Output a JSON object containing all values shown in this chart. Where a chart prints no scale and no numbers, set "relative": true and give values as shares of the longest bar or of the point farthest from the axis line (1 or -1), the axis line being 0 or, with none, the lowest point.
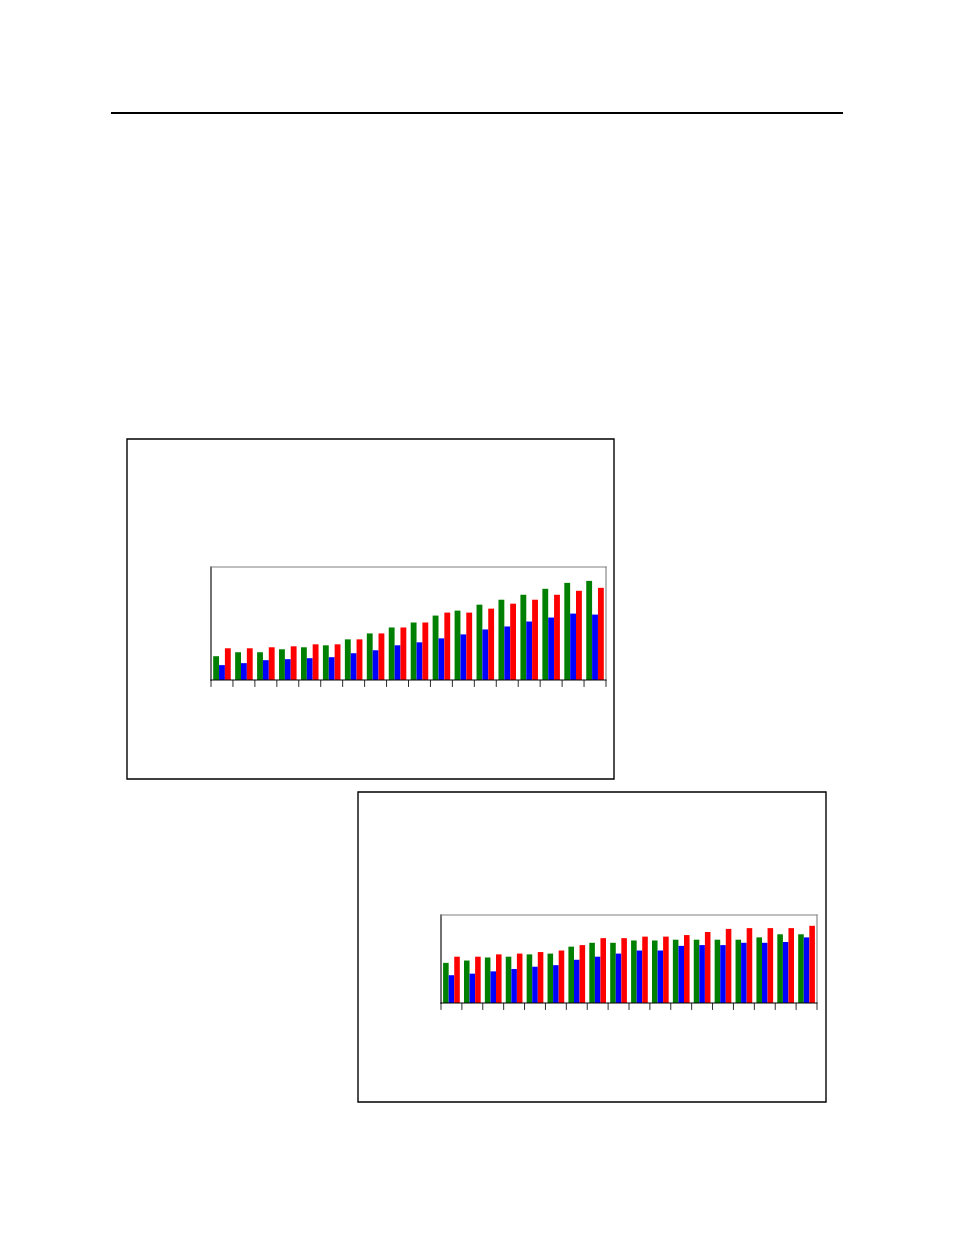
{
  "chart_data": [
    {
      "type": "bar",
      "relative": true,
      "categories": [
        null,
        null,
        null,
        null,
        null,
        null,
        null,
        null,
        null,
        null,
        null,
        null,
        null,
        null,
        null,
        null,
        null,
        null
      ],
      "series": [
        {
          "color": "#008000",
          "values": [
            0.24,
            0.28,
            0.28,
            0.31,
            0.33,
            0.35,
            0.41,
            0.47,
            0.53,
            0.58,
            0.65,
            0.7,
            0.76,
            0.81,
            0.86,
            0.92,
            0.98,
            1
          ]
        },
        {
          "color": "#0000ff",
          "values": [
            0.15,
            0.17,
            0.2,
            0.21,
            0.22,
            0.23,
            0.27,
            0.3,
            0.35,
            0.38,
            0.42,
            0.46,
            0.51,
            0.54,
            0.59,
            0.63,
            0.67,
            0.66
          ]
        },
        {
          "color": "#ff0000",
          "values": [
            0.32,
            0.32,
            0.33,
            0.34,
            0.36,
            0.36,
            0.41,
            0.47,
            0.53,
            0.58,
            0.68,
            0.68,
            0.72,
            0.77,
            0.81,
            0.86,
            0.9,
            0.93
          ]
        }
      ]
    },
    {
      "type": "bar",
      "relative": true,
      "categories": [
        null,
        null,
        null,
        null,
        null,
        null,
        null,
        null,
        null,
        null,
        null,
        null,
        null,
        null,
        null,
        null,
        null,
        null
      ],
      "series": [
        {
          "color": "#008000",
          "values": [
            0.52,
            0.55,
            0.59,
            0.6,
            0.63,
            0.64,
            0.73,
            0.78,
            0.78,
            0.81,
            0.81,
            0.82,
            0.82,
            0.82,
            0.82,
            0.85,
            0.89,
            0.89
          ]
        },
        {
          "color": "#0000ff",
          "values": [
            0.36,
            0.38,
            0.41,
            0.44,
            0.47,
            0.49,
            0.56,
            0.6,
            0.64,
            0.68,
            0.68,
            0.74,
            0.75,
            0.75,
            0.78,
            0.78,
            0.79,
            0.85
          ]
        },
        {
          "color": "#ff0000",
          "values": [
            0.6,
            0.6,
            0.63,
            0.64,
            0.66,
            0.68,
            0.75,
            0.84,
            0.84,
            0.86,
            0.86,
            0.88,
            0.92,
            0.96,
            0.97,
            0.97,
            0.97,
            1
          ]
        }
      ]
    }
  ]
}
